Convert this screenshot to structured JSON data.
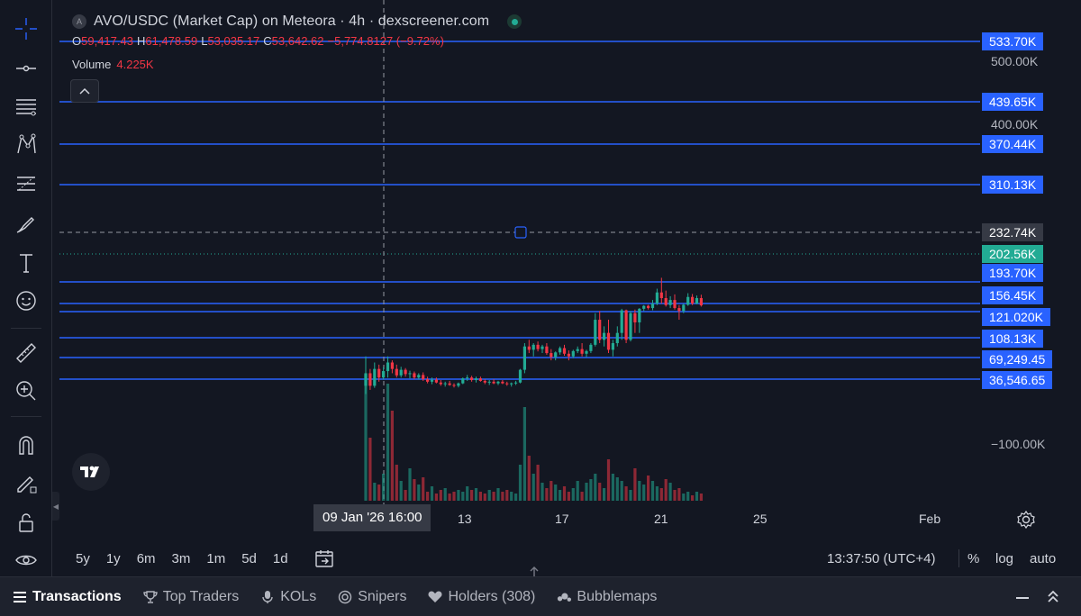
{
  "legend": {
    "symbol_letter": "A",
    "title": "AVO/USDC (Market Cap) on Meteora · 4h · dexscreener.com",
    "ohlc": [
      {
        "key": "O",
        "value": "59,417.43"
      },
      {
        "key": "H",
        "value": "61,478.59"
      },
      {
        "key": "L",
        "value": "53,035.17"
      },
      {
        "key": "C",
        "value": "53,642.62"
      },
      {
        "key": "",
        "value": "−5,774.8127 (−9.72%)"
      }
    ],
    "volume_label": "Volume",
    "volume_value": "4.225K",
    "collapse_icon": "chevron-up-icon"
  },
  "price_axis": {
    "plain_labels": [
      "500.00K",
      "400.00K",
      "−100.00K"
    ],
    "line_tags": [
      "533.70K",
      "439.65K",
      "370.44K",
      "310.13K",
      "193.70K",
      "156.45K",
      "121.020K",
      "108.13K",
      "69,249.45",
      "36,546.65"
    ],
    "crosshair_price": "232.74K",
    "last_price": "202.56K"
  },
  "time_axis": {
    "crosshair_time": "09 Jan '26   16:00",
    "labels": [
      "13",
      "17",
      "21",
      "25",
      "Feb"
    ]
  },
  "ranges": [
    "5y",
    "1y",
    "6m",
    "3m",
    "1m",
    "5d",
    "1d"
  ],
  "clock": "13:37:50 (UTC+4)",
  "options": {
    "percent": "%",
    "log": "log",
    "auto": "auto"
  },
  "tabs": [
    {
      "label": "Transactions",
      "icon": "list-icon",
      "active": true
    },
    {
      "label": "Top Traders",
      "icon": "trophy-icon",
      "active": false
    },
    {
      "label": "KOLs",
      "icon": "microphone-icon",
      "active": false
    },
    {
      "label": "Snipers",
      "icon": "target-icon",
      "active": false
    },
    {
      "label": "Holders (308)",
      "icon": "heart-icon",
      "active": false
    },
    {
      "label": "Bubblemaps",
      "icon": "bubbles-icon",
      "active": false
    }
  ],
  "colors": {
    "background": "#131722",
    "up": "#22ab94",
    "down": "#f23645",
    "hline": "#2962ff",
    "tag": "#2962ff"
  },
  "chart_data": {
    "type": "candlestick",
    "x_labels": [
      "13",
      "17",
      "21",
      "25",
      "Feb"
    ],
    "horizontal_lines": [
      533.7,
      439.65,
      370.44,
      310.13,
      193.7,
      156.45,
      121.02,
      108.13,
      69.25,
      36.55
    ],
    "crosshair_level": 232.74,
    "last_price": 202.56,
    "unit": "K",
    "candles": [
      [
        40,
        110,
        20,
        70
      ],
      [
        70,
        80,
        30,
        40
      ],
      [
        40,
        95,
        35,
        80
      ],
      [
        80,
        90,
        50,
        60
      ],
      [
        60,
        85,
        55,
        75
      ],
      [
        75,
        110,
        60,
        95
      ],
      [
        95,
        100,
        70,
        80
      ],
      [
        80,
        90,
        60,
        65
      ],
      [
        65,
        85,
        60,
        78
      ],
      [
        78,
        82,
        62,
        68
      ],
      [
        68,
        76,
        58,
        70
      ],
      [
        70,
        74,
        56,
        60
      ],
      [
        60,
        70,
        55,
        66
      ],
      [
        66,
        72,
        52,
        56
      ],
      [
        56,
        62,
        46,
        50
      ],
      [
        50,
        60,
        44,
        55
      ],
      [
        55,
        60,
        46,
        48
      ],
      [
        48,
        54,
        40,
        44
      ],
      [
        44,
        50,
        38,
        46
      ],
      [
        46,
        52,
        40,
        42
      ],
      [
        42,
        46,
        36,
        40
      ],
      [
        40,
        48,
        36,
        46
      ],
      [
        46,
        60,
        44,
        58
      ],
      [
        58,
        66,
        52,
        60
      ],
      [
        60,
        64,
        50,
        54
      ],
      [
        54,
        62,
        48,
        58
      ],
      [
        58,
        62,
        50,
        52
      ],
      [
        52,
        56,
        44,
        48
      ],
      [
        48,
        54,
        42,
        50
      ],
      [
        50,
        56,
        44,
        46
      ],
      [
        46,
        52,
        42,
        50
      ],
      [
        50,
        54,
        44,
        46
      ],
      [
        46,
        50,
        40,
        44
      ],
      [
        44,
        48,
        38,
        46
      ],
      [
        46,
        52,
        42,
        48
      ],
      [
        48,
        80,
        46,
        78
      ],
      [
        78,
        150,
        70,
        140
      ],
      [
        140,
        160,
        120,
        130
      ],
      [
        130,
        150,
        110,
        145
      ],
      [
        145,
        155,
        125,
        132
      ],
      [
        132,
        145,
        120,
        140
      ],
      [
        140,
        150,
        115,
        120
      ],
      [
        120,
        132,
        100,
        108
      ],
      [
        108,
        125,
        100,
        122
      ],
      [
        122,
        140,
        115,
        135
      ],
      [
        135,
        145,
        112,
        118
      ],
      [
        118,
        128,
        100,
        110
      ],
      [
        110,
        130,
        105,
        126
      ],
      [
        126,
        140,
        120,
        132
      ],
      [
        132,
        150,
        110,
        118
      ],
      [
        118,
        130,
        108,
        126
      ],
      [
        126,
        150,
        120,
        145
      ],
      [
        145,
        185,
        140,
        180
      ],
      [
        180,
        190,
        150,
        160
      ],
      [
        160,
        175,
        140,
        170
      ],
      [
        170,
        180,
        120,
        130
      ],
      [
        130,
        160,
        110,
        150
      ],
      [
        150,
        175,
        140,
        170
      ],
      [
        170,
        205,
        160,
        195
      ],
      [
        195,
        200,
        150,
        160
      ],
      [
        160,
        190,
        155,
        185
      ],
      [
        185,
        200,
        170,
        178
      ],
      [
        178,
        210,
        170,
        205
      ],
      [
        205,
        230,
        190,
        225
      ],
      [
        225,
        232,
        200,
        210
      ],
      [
        210,
        250,
        195,
        240
      ],
      [
        240,
        280,
        230,
        270
      ],
      [
        270,
        300,
        240,
        255
      ],
      [
        255,
        275,
        220,
        230
      ],
      [
        230,
        260,
        210,
        250
      ],
      [
        250,
        265,
        200,
        210
      ],
      [
        210,
        230,
        180,
        190
      ],
      [
        190,
        240,
        185,
        232
      ],
      [
        232,
        268,
        225,
        258
      ],
      [
        258,
        266,
        230,
        240
      ],
      [
        240,
        262,
        236,
        255
      ],
      [
        255,
        264,
        220,
        228
      ]
    ],
    "volumes": [
      140,
      70,
      20,
      18,
      30,
      130,
      100,
      40,
      22,
      12,
      36,
      24,
      18,
      26,
      10,
      16,
      8,
      12,
      14,
      8,
      10,
      12,
      10,
      16,
      12,
      14,
      10,
      8,
      12,
      10,
      14,
      10,
      12,
      10,
      8,
      40,
      104,
      50,
      30,
      40,
      20,
      14,
      22,
      18,
      12,
      16,
      10,
      14,
      22,
      10,
      20,
      24,
      30,
      20,
      14,
      46,
      30,
      26,
      22,
      16,
      12,
      36,
      22,
      18,
      28,
      22,
      16,
      14,
      24,
      20,
      12,
      14,
      8,
      10,
      6,
      10,
      8
    ]
  }
}
